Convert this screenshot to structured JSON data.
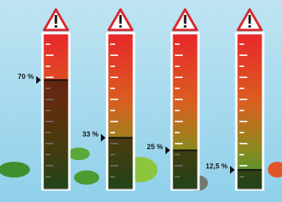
{
  "chart_data": {
    "type": "bar",
    "categories": [
      null,
      null,
      null,
      null
    ],
    "values": [
      70,
      33,
      25,
      12.5
    ],
    "value_labels": [
      "70 %",
      "33 %",
      "25 %",
      "12,5 %"
    ],
    "ylim": [
      0,
      100
    ]
  }
}
